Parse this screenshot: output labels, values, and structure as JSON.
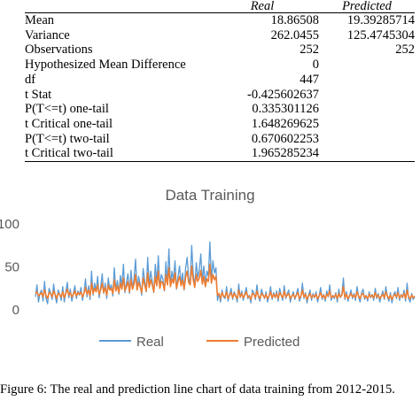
{
  "table": {
    "headers": [
      "",
      "Real",
      "Predicted"
    ],
    "rows": [
      {
        "label": "Mean",
        "real": "18.86508",
        "pred": "19.39285714"
      },
      {
        "label": "Variance",
        "real": "262.0455",
        "pred": "125.4745304"
      },
      {
        "label": "Observations",
        "real": "252",
        "pred": "252"
      },
      {
        "label": "Hypothesized Mean Difference",
        "real": "0",
        "pred": ""
      },
      {
        "label": "df",
        "real": "447",
        "pred": ""
      },
      {
        "label": "t Stat",
        "real": "-0.425602637",
        "pred": ""
      },
      {
        "label": "P(T<=t) one-tail",
        "real": "0.335301126",
        "pred": ""
      },
      {
        "label": "t Critical one-tail",
        "real": "1.648269625",
        "pred": ""
      },
      {
        "label": "P(T<=t) two-tail",
        "real": "0.670602253",
        "pred": ""
      },
      {
        "label": "t Critical two-tail",
        "real": "1.965285234",
        "pred": ""
      }
    ]
  },
  "chart_data": {
    "type": "line",
    "title": "Data Training",
    "xlabel": "",
    "ylabel": "",
    "ylim": [
      0,
      100
    ],
    "yticks": [
      0,
      50,
      100
    ],
    "grid": false,
    "legend": "bottom",
    "colors": {
      "Real": "#5b9bd5",
      "Predicted": "#ed7d31"
    },
    "series": [
      {
        "name": "Real",
        "values": [
          14,
          28,
          8,
          18,
          22,
          9,
          32,
          12,
          6,
          24,
          19,
          11,
          29,
          15,
          7,
          22,
          17,
          10,
          26,
          8,
          20,
          31,
          13,
          23,
          9,
          18,
          27,
          12,
          21,
          16,
          25,
          10,
          19,
          35,
          14,
          27,
          11,
          44,
          16,
          30,
          20,
          38,
          13,
          25,
          41,
          18,
          30,
          12,
          36,
          23,
          28,
          15,
          48,
          21,
          33,
          17,
          39,
          26,
          52,
          19,
          31,
          41,
          18,
          45,
          24,
          35,
          58,
          22,
          38,
          29,
          16,
          47,
          33,
          20,
          60,
          27,
          44,
          32,
          19,
          52,
          30,
          62,
          25,
          40,
          35,
          21,
          55,
          30,
          70,
          27,
          44,
          33,
          56,
          23,
          38,
          50,
          28,
          42,
          22,
          48,
          60,
          36,
          30,
          74,
          41,
          26,
          54,
          37,
          46,
          64,
          32,
          50,
          28,
          44,
          38,
          78,
          34,
          56,
          42,
          48,
          10,
          18,
          8,
          22,
          14,
          12,
          26,
          9,
          17,
          24,
          11,
          20,
          16,
          8,
          29,
          13,
          21,
          10,
          18,
          25,
          12,
          16,
          7,
          22,
          19,
          11,
          28,
          14,
          9,
          23,
          17,
          12,
          20,
          8,
          15,
          26,
          11,
          19,
          13,
          21,
          9,
          24,
          16,
          10,
          27,
          12,
          18,
          22,
          8,
          15,
          20,
          11,
          17,
          24,
          9,
          14,
          30,
          12,
          19,
          7,
          16,
          22,
          10,
          18,
          13,
          20,
          8,
          15,
          25,
          11,
          17,
          9,
          21,
          14,
          28,
          10,
          16,
          12,
          19,
          8,
          23,
          13,
          17,
          36,
          11,
          20,
          9,
          15,
          22,
          12,
          18,
          10,
          26,
          14,
          8,
          19,
          23,
          11,
          16,
          9,
          20,
          13,
          17,
          10,
          24,
          12,
          18,
          8,
          15,
          21,
          11,
          26,
          14,
          9,
          19,
          7,
          16,
          20,
          12,
          25,
          10,
          17,
          13,
          22,
          9,
          30,
          12,
          8,
          18,
          11,
          14
        ]
      },
      {
        "name": "Predicted",
        "values": [
          18,
          20,
          15,
          17,
          19,
          14,
          22,
          16,
          12,
          19,
          18,
          14,
          21,
          17,
          12,
          18,
          17,
          14,
          20,
          13,
          18,
          23,
          16,
          19,
          14,
          17,
          21,
          15,
          19,
          17,
          20,
          14,
          18,
          25,
          17,
          22,
          15,
          30,
          18,
          24,
          20,
          28,
          17,
          22,
          30,
          19,
          25,
          16,
          28,
          22,
          24,
          18,
          34,
          21,
          27,
          19,
          30,
          23,
          36,
          21,
          26,
          32,
          20,
          34,
          23,
          29,
          40,
          22,
          31,
          26,
          19,
          36,
          28,
          21,
          42,
          25,
          34,
          28,
          20,
          38,
          27,
          44,
          24,
          32,
          30,
          22,
          40,
          28,
          48,
          26,
          35,
          30,
          42,
          24,
          32,
          38,
          27,
          34,
          23,
          37,
          44,
          31,
          28,
          50,
          34,
          25,
          40,
          32,
          36,
          45,
          29,
          38,
          26,
          35,
          32,
          52,
          30,
          40,
          34,
          38,
          16,
          18,
          12,
          19,
          15,
          14,
          20,
          12,
          16,
          19,
          13,
          18,
          15,
          12,
          22,
          14,
          18,
          13,
          16,
          20,
          14,
          15,
          11,
          18,
          17,
          13,
          21,
          15,
          12,
          18,
          16,
          13,
          17,
          12,
          15,
          20,
          13,
          17,
          14,
          18,
          12,
          19,
          16,
          13,
          21,
          14,
          16,
          18,
          12,
          15,
          17,
          13,
          16,
          19,
          12,
          15,
          22,
          14,
          17,
          11,
          15,
          18,
          13,
          16,
          14,
          17,
          12,
          15,
          19,
          13,
          16,
          12,
          17,
          15,
          21,
          13,
          15,
          14,
          17,
          12,
          18,
          14,
          16,
          26,
          13,
          17,
          12,
          15,
          18,
          14,
          16,
          13,
          20,
          15,
          12,
          17,
          18,
          13,
          15,
          12,
          17,
          14,
          16,
          13,
          19,
          14,
          16,
          12,
          15,
          17,
          13,
          20,
          15,
          12,
          16,
          11,
          15,
          17,
          14,
          19,
          13,
          16,
          14,
          18,
          12,
          22,
          14,
          12,
          16,
          13,
          15
        ]
      }
    ]
  },
  "caption": "Figure 6: The real and prediction line chart of data training from 2012-2015."
}
